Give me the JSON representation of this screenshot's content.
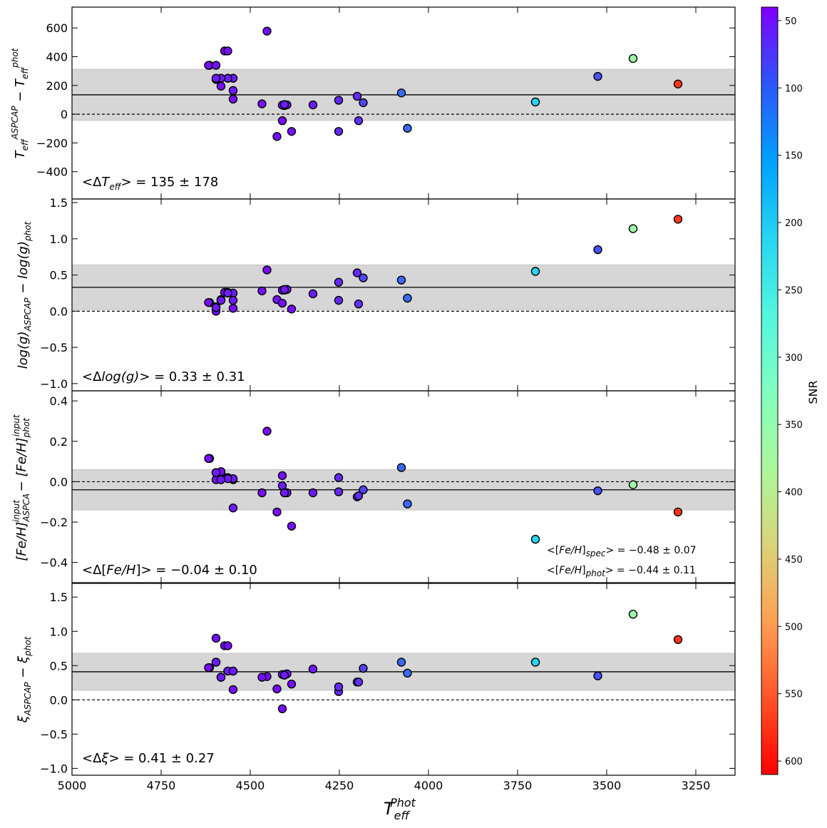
{
  "chart_data": {
    "type": "scatter",
    "xlabel": "T_eff^Phot",
    "x_ticks": [
      5000,
      4750,
      4500,
      4250,
      4000,
      3750,
      3500,
      3250
    ],
    "xlim": [
      5000,
      3140
    ],
    "x": [
      4614,
      4596,
      4572,
      4617,
      4596,
      4582,
      4548,
      4563,
      4548,
      4563,
      4582,
      4596,
      4548,
      4453,
      4467,
      4425,
      4410,
      4404,
      4397,
      4410,
      4404,
      4384,
      4324,
      4252,
      4252,
      4200,
      4196,
      4183,
      4076,
      4059,
      3700,
      3525,
      3426,
      3300
    ],
    "snr": [
      50,
      50,
      50,
      50,
      50,
      50,
      50,
      50,
      60,
      60,
      60,
      60,
      60,
      50,
      50,
      50,
      50,
      60,
      60,
      60,
      60,
      50,
      60,
      70,
      70,
      70,
      75,
      90,
      130,
      130,
      270,
      100,
      420,
      590
    ],
    "colorbar": {
      "label": "SNR",
      "range": [
        40,
        610
      ],
      "ticks": [
        50,
        100,
        150,
        200,
        250,
        300,
        350,
        400,
        450,
        500,
        550,
        600
      ]
    },
    "panels": [
      {
        "key": "teff",
        "ylabel": "T_eff^ASPCAP − T_eff^phot",
        "ylim": [
          -590,
          745
        ],
        "yticks": [
          600,
          400,
          200,
          0,
          -200,
          -400
        ],
        "ytick_labels": [
          "600",
          "400",
          "200",
          "0",
          "−200",
          "−400"
        ],
        "mean": 135,
        "std": 178,
        "annotation": "<ΔT_eff> = 135 ± 178",
        "y": [
          340,
          242,
          440,
          340,
          340,
          195,
          105,
          440,
          250,
          250,
          250,
          250,
          165,
          578,
          72,
          -155,
          -45,
          60,
          65,
          63,
          67,
          -120,
          65,
          -120,
          97,
          125,
          -45,
          80,
          148,
          -98,
          85,
          263,
          388,
          210
        ]
      },
      {
        "key": "logg",
        "ylabel": "log(g)_ASPCAP − log(g)_phot",
        "ylim": [
          -1.1,
          1.55
        ],
        "yticks": [
          1.5,
          1.0,
          0.5,
          0.0,
          -0.5,
          -1.0
        ],
        "ytick_labels": [
          "1.5",
          "1.0",
          "0.5",
          "0.0",
          "−0.5",
          "−1.0"
        ],
        "mean": 0.33,
        "std": 0.31,
        "annotation": "<Δlog(g)> = 0.33 ± 0.31",
        "y": [
          0.12,
          0.0,
          0.26,
          0.12,
          0.06,
          0.16,
          0.04,
          0.26,
          0.25,
          0.25,
          0.15,
          0.05,
          0.15,
          0.57,
          0.28,
          0.16,
          0.11,
          0.29,
          0.3,
          0.29,
          0.3,
          0.03,
          0.24,
          0.15,
          0.4,
          0.53,
          0.1,
          0.46,
          0.43,
          0.18,
          0.55,
          0.85,
          1.14,
          1.27
        ]
      },
      {
        "key": "feh",
        "ylabel": "[Fe/H]_ASPCA^input − [Fe/H]_phot^input",
        "ylim": [
          -0.5,
          0.45
        ],
        "yticks": [
          0.4,
          0.2,
          0.0,
          -0.2,
          -0.4
        ],
        "ytick_labels": [
          "0.4",
          "0.2",
          "0.0",
          "−0.2",
          "−0.4"
        ],
        "mean": -0.04,
        "std": 0.1,
        "annotation": "<Δ[Fe/H]> = −0.04 ± 0.10",
        "extra_annotations": [
          "<[Fe/H]_spec> = −0.48 ± 0.07",
          "<[Fe/H]_phot> = −0.44 ± 0.11"
        ],
        "y": [
          0.115,
          0.045,
          0.02,
          0.115,
          0.01,
          0.05,
          0.01,
          0.02,
          0.015,
          0.015,
          0.01,
          0.045,
          -0.13,
          0.25,
          -0.055,
          -0.15,
          0.03,
          -0.055,
          -0.055,
          -0.02,
          -0.055,
          -0.22,
          -0.055,
          -0.05,
          0.02,
          -0.075,
          -0.07,
          -0.04,
          0.07,
          -0.11,
          -0.285,
          -0.045,
          -0.015,
          -0.15
        ]
      },
      {
        "key": "xi",
        "ylabel": "ξ_ASPCAP − ξ_phot",
        "ylim": [
          -1.1,
          1.7
        ],
        "yticks": [
          1.5,
          1.0,
          0.5,
          0.0,
          -0.5,
          -1.0
        ],
        "ytick_labels": [
          "1.5",
          "1.0",
          "0.5",
          "0.0",
          "−0.5",
          "−1.0"
        ],
        "mean": 0.41,
        "std": 0.27,
        "annotation": "<Δξ> = 0.41 ± 0.27",
        "y": [
          0.47,
          0.55,
          0.79,
          0.47,
          0.9,
          0.33,
          0.15,
          0.79,
          0.42,
          0.42,
          0.33,
          0.55,
          0.42,
          0.34,
          0.33,
          0.16,
          -0.13,
          0.37,
          0.38,
          0.37,
          0.36,
          0.23,
          0.45,
          0.12,
          0.19,
          0.26,
          0.26,
          0.46,
          0.55,
          0.39,
          0.55,
          0.35,
          1.25,
          0.88
        ]
      }
    ]
  }
}
